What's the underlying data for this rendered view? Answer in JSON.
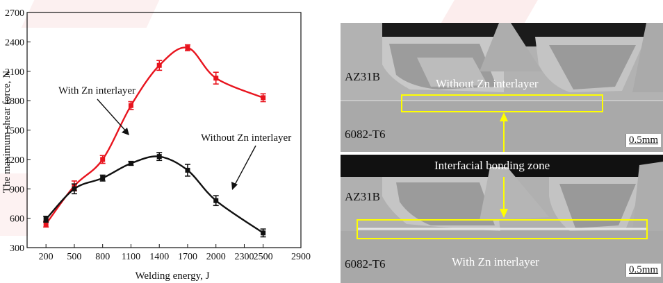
{
  "chart_data": {
    "type": "line",
    "xlabel": "Welding energy, J",
    "ylabel": "The maximum shear force, N",
    "x_ticks": [
      200,
      500,
      800,
      1100,
      1400,
      1700,
      2000,
      2300,
      2500,
      2900
    ],
    "y_ticks": [
      300,
      600,
      900,
      1200,
      1500,
      1800,
      2100,
      2400,
      2700
    ],
    "xlim": [
      0,
      2900
    ],
    "ylim": [
      300,
      2700
    ],
    "series": [
      {
        "name": "With Zn interlayer",
        "color": "#e8141e",
        "points": [
          [
            200,
            540
          ],
          [
            500,
            930
          ],
          [
            800,
            1200
          ],
          [
            1100,
            1750
          ],
          [
            1400,
            2160
          ],
          [
            1700,
            2340
          ],
          [
            2000,
            2030
          ],
          [
            2500,
            1830
          ]
        ],
        "errors": [
          30,
          50,
          40,
          40,
          50,
          30,
          60,
          40
        ]
      },
      {
        "name": "Without Zn interlayer",
        "color": "#111111",
        "points": [
          [
            200,
            590
          ],
          [
            500,
            900
          ],
          [
            800,
            1010
          ],
          [
            1100,
            1160
          ],
          [
            1400,
            1230
          ],
          [
            1700,
            1090
          ],
          [
            2000,
            780
          ],
          [
            2500,
            450
          ]
        ],
        "errors": [
          30,
          50,
          30,
          20,
          40,
          60,
          50,
          40
        ]
      }
    ],
    "annotations": [
      {
        "text": "With Zn interlayer",
        "color": "#111111"
      },
      {
        "text": "Without Zn interlayer",
        "color": "#111111"
      }
    ]
  },
  "micrographs": {
    "top": {
      "upper_material": "AZ31B",
      "lower_material": "6082-T6",
      "caption": "Without Zn interlayer",
      "scale": "0.5mm"
    },
    "bottom": {
      "upper_material": "AZ31B",
      "lower_material": "6082-T6",
      "caption": "With Zn interlayer",
      "scale": "0.5mm"
    },
    "center_label": "Interfacial bonding zone",
    "highlight_color": "#ffff00"
  }
}
